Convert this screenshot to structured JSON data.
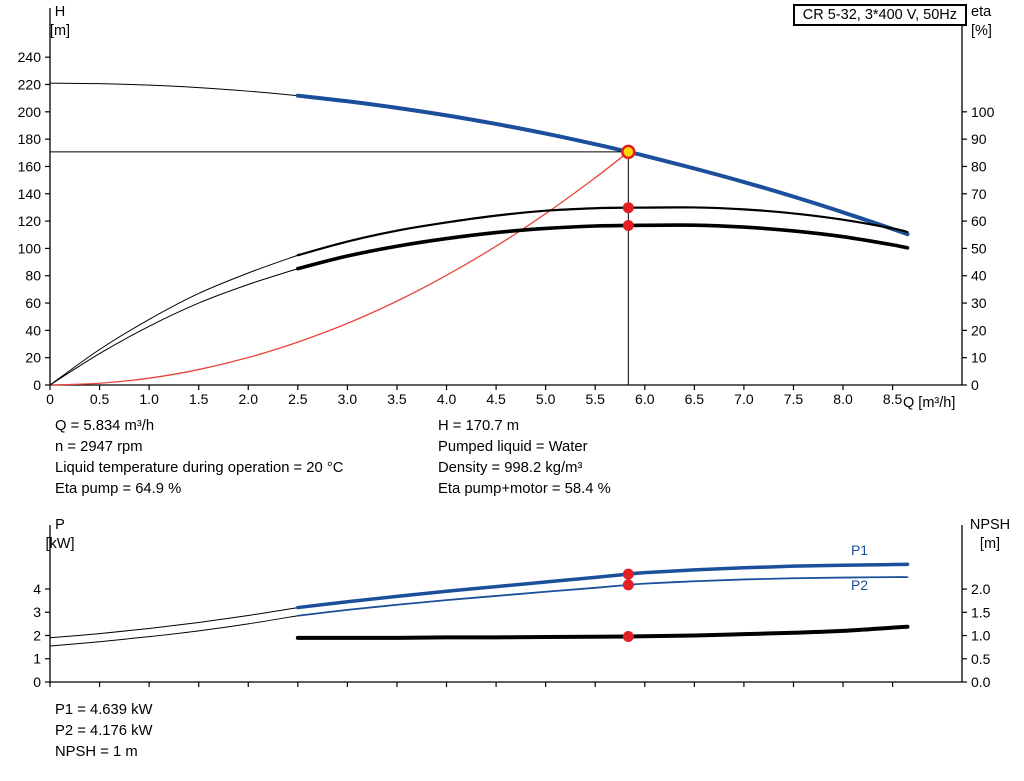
{
  "title_box": "CR 5-32, 3*400 V, 50Hz",
  "colors": {
    "curve_blue": "#1b4f9c",
    "marker_red": "#e31e24",
    "system_curve_red": "#e8453c",
    "duty_point_yellow": "#ffd800",
    "axis_black": "#000000"
  },
  "annotations": {
    "top_left": [
      "Q = 5.834 m³/h",
      "n = 2947 rpm",
      "Liquid temperature during operation = 20 °C",
      "Eta pump = 64.9 %"
    ],
    "top_right": [
      "H = 170.7 m",
      "Pumped liquid = Water",
      "Density = 998.2 kg/m³",
      "Eta pump+motor = 58.4 %"
    ],
    "bottom": [
      "P1 = 4.639 kW",
      "P2 = 4.176 kW",
      "NPSH = 1 m"
    ]
  },
  "chart_data": [
    {
      "id": "qh",
      "type": "line",
      "title": "CR 5-32, 3*400 V, 50Hz",
      "x_axis": {
        "min": 0,
        "max": 9.2,
        "label": "Q [m³/h]",
        "show_labels": true,
        "ticks": [
          {
            "v": 0,
            "t": "0"
          },
          {
            "v": 0.5,
            "t": "0.5"
          },
          {
            "v": 1,
            "t": "1.0"
          },
          {
            "v": 1.5,
            "t": "1.5"
          },
          {
            "v": 2,
            "t": "2.0"
          },
          {
            "v": 2.5,
            "t": "2.5"
          },
          {
            "v": 3,
            "t": "3.0"
          },
          {
            "v": 3.5,
            "t": "3.5"
          },
          {
            "v": 4,
            "t": "4.0"
          },
          {
            "v": 4.5,
            "t": "4.5"
          },
          {
            "v": 5,
            "t": "5.0"
          },
          {
            "v": 5.5,
            "t": "5.5"
          },
          {
            "v": 6,
            "t": "6.0"
          },
          {
            "v": 6.5,
            "t": "6.5"
          },
          {
            "v": 7,
            "t": "7.0"
          },
          {
            "v": 7.5,
            "t": "7.5"
          },
          {
            "v": 8,
            "t": "8.0"
          },
          {
            "v": 8.5,
            "t": "8.5"
          }
        ]
      },
      "left_axis": {
        "min": 0,
        "max": 276,
        "label_lines": [
          "H",
          "[m]"
        ],
        "ticks": [
          {
            "v": 0,
            "t": "0"
          },
          {
            "v": 20,
            "t": "20"
          },
          {
            "v": 40,
            "t": "40"
          },
          {
            "v": 60,
            "t": "60"
          },
          {
            "v": 80,
            "t": "80"
          },
          {
            "v": 100,
            "t": "100"
          },
          {
            "v": 120,
            "t": "120"
          },
          {
            "v": 140,
            "t": "140"
          },
          {
            "v": 160,
            "t": "160"
          },
          {
            "v": 180,
            "t": "180"
          },
          {
            "v": 200,
            "t": "200"
          },
          {
            "v": 220,
            "t": "220"
          },
          {
            "v": 240,
            "t": "240"
          }
        ]
      },
      "right_axis": {
        "min": 0,
        "max": 138,
        "label_lines": [
          "eta",
          "[%]"
        ],
        "ticks": [
          {
            "v": 0,
            "t": "0"
          },
          {
            "v": 10,
            "t": "10"
          },
          {
            "v": 20,
            "t": "20"
          },
          {
            "v": 30,
            "t": "30"
          },
          {
            "v": 40,
            "t": "40"
          },
          {
            "v": 50,
            "t": "50"
          },
          {
            "v": 60,
            "t": "60"
          },
          {
            "v": 70,
            "t": "70"
          },
          {
            "v": 80,
            "t": "80"
          },
          {
            "v": 90,
            "t": "90"
          },
          {
            "v": 100,
            "t": "100"
          }
        ]
      },
      "series": [
        {
          "name": "head-curve-low-flow",
          "axis": "left",
          "color": "#000000",
          "width": 1,
          "points": [
            [
              0,
              221
            ],
            [
              0.5,
              220.6
            ],
            [
              1,
              219.5
            ],
            [
              1.5,
              217.7
            ],
            [
              2,
              215.1
            ],
            [
              2.5,
              211.8
            ]
          ]
        },
        {
          "name": "head-curve",
          "axis": "left",
          "color": "#1b4f9c",
          "width": 4,
          "points": [
            [
              2.5,
              211.8
            ],
            [
              3,
              207.7
            ],
            [
              3.5,
              202.9
            ],
            [
              4,
              197.4
            ],
            [
              4.5,
              191.1
            ],
            [
              5,
              184.1
            ],
            [
              5.5,
              176.3
            ],
            [
              5.834,
              170.7
            ],
            [
              6,
              167.8
            ],
            [
              6.5,
              158.5
            ],
            [
              7,
              148.6
            ],
            [
              7.5,
              137.9
            ],
            [
              8,
              126.4
            ],
            [
              8.5,
              114.2
            ],
            [
              8.65,
              110.4
            ]
          ]
        },
        {
          "name": "system-curve",
          "axis": "left",
          "color": "#e8453c",
          "width": 1.3,
          "points": [
            [
              0,
              0
            ],
            [
              0.5,
              1.3
            ],
            [
              1,
              5
            ],
            [
              1.5,
              11.3
            ],
            [
              2,
              20.1
            ],
            [
              2.5,
              31.4
            ],
            [
              3,
              45.1
            ],
            [
              3.5,
              61.4
            ],
            [
              4,
              80.3
            ],
            [
              4.5,
              101.6
            ],
            [
              5,
              125.4
            ],
            [
              5.5,
              151.7
            ],
            [
              5.834,
              170.7
            ]
          ]
        },
        {
          "name": "eta-pump-low-flow",
          "axis": "right",
          "color": "#000000",
          "width": 1,
          "points": [
            [
              0,
              0
            ],
            [
              0.5,
              13
            ],
            [
              1,
              24
            ],
            [
              1.5,
              33.5
            ],
            [
              2,
              41
            ],
            [
              2.5,
              47.5
            ]
          ]
        },
        {
          "name": "eta-pump-curve",
          "axis": "right",
          "color": "#000000",
          "width": 2.2,
          "points": [
            [
              2.5,
              47.5
            ],
            [
              3,
              52.5
            ],
            [
              3.5,
              56.5
            ],
            [
              4,
              59.5
            ],
            [
              4.5,
              62
            ],
            [
              5,
              63.8
            ],
            [
              5.5,
              64.7
            ],
            [
              5.834,
              64.9
            ],
            [
              6.5,
              65
            ],
            [
              7,
              64.3
            ],
            [
              7.5,
              62.8
            ],
            [
              8,
              60.5
            ],
            [
              8.5,
              57.3
            ],
            [
              8.65,
              56
            ]
          ]
        },
        {
          "name": "eta-pump-motor-low-flow",
          "axis": "right",
          "color": "#000000",
          "width": 1,
          "points": [
            [
              0,
              0
            ],
            [
              0.5,
              11.5
            ],
            [
              1,
              21.5
            ],
            [
              1.5,
              30
            ],
            [
              2,
              36.8
            ],
            [
              2.5,
              42.6
            ]
          ]
        },
        {
          "name": "eta-pump-motor-curve",
          "axis": "right",
          "color": "#000000",
          "width": 3.6,
          "points": [
            [
              2.5,
              42.6
            ],
            [
              3,
              47.2
            ],
            [
              3.5,
              50.8
            ],
            [
              4,
              53.6
            ],
            [
              4.5,
              55.8
            ],
            [
              5,
              57.3
            ],
            [
              5.5,
              58.2
            ],
            [
              5.834,
              58.4
            ],
            [
              6.5,
              58.5
            ],
            [
              7,
              57.8
            ],
            [
              7.5,
              56.4
            ],
            [
              8,
              54.3
            ],
            [
              8.5,
              51.3
            ],
            [
              8.65,
              50.2
            ]
          ]
        }
      ],
      "markers": [
        {
          "name": "duty-flow-line",
          "type": "vline",
          "axis": "left",
          "x": 5.834,
          "y1": 0,
          "y2": 170.7,
          "color": "#000000",
          "width": 1
        },
        {
          "name": "duty-head-line",
          "type": "hline",
          "axis": "left",
          "y": 170.7,
          "x1": 0,
          "x2": 5.834,
          "color": "#000000",
          "width": 1
        },
        {
          "name": "eta-pump-point",
          "type": "dot",
          "axis": "right",
          "x": 5.834,
          "y": 64.9,
          "r": 5.5,
          "fill": "#e31e24"
        },
        {
          "name": "eta-pump-motor-point",
          "type": "dot",
          "axis": "right",
          "x": 5.834,
          "y": 58.4,
          "r": 5.5,
          "fill": "#e31e24"
        },
        {
          "name": "duty-point",
          "type": "dot",
          "axis": "left",
          "x": 5.834,
          "y": 170.7,
          "r": 6,
          "fill": "#ffd800",
          "stroke": "#e31e24",
          "stroke_width": 2.5,
          "interactable": true
        }
      ],
      "duty_point": {
        "q_m3h": 5.834,
        "h_m": 170.7,
        "eta_pump_pct": 64.9,
        "eta_pump_motor_pct": 58.4
      }
    },
    {
      "id": "power",
      "type": "line",
      "x_axis": {
        "min": 0,
        "max": 9.2,
        "label": "",
        "show_labels": false,
        "ticks": [
          {
            "v": 0,
            "t": "0"
          },
          {
            "v": 0.5,
            "t": ""
          },
          {
            "v": 1,
            "t": ""
          },
          {
            "v": 1.5,
            "t": ""
          },
          {
            "v": 2,
            "t": ""
          },
          {
            "v": 2.5,
            "t": ""
          },
          {
            "v": 3,
            "t": ""
          },
          {
            "v": 3.5,
            "t": ""
          },
          {
            "v": 4,
            "t": ""
          },
          {
            "v": 4.5,
            "t": ""
          },
          {
            "v": 5,
            "t": ""
          },
          {
            "v": 5.5,
            "t": ""
          },
          {
            "v": 6,
            "t": ""
          },
          {
            "v": 6.5,
            "t": ""
          },
          {
            "v": 7,
            "t": ""
          },
          {
            "v": 7.5,
            "t": ""
          },
          {
            "v": 8,
            "t": ""
          },
          {
            "v": 8.5,
            "t": ""
          }
        ]
      },
      "left_axis": {
        "min": 0,
        "max": 6.75,
        "label_lines": [
          "P",
          "[kW]"
        ],
        "ticks": [
          {
            "v": 0,
            "t": "0"
          },
          {
            "v": 1,
            "t": "1"
          },
          {
            "v": 2,
            "t": "2"
          },
          {
            "v": 3,
            "t": "3"
          },
          {
            "v": 4,
            "t": "4"
          }
        ]
      },
      "right_axis": {
        "min": 0,
        "max": 3.38,
        "label_lines": [
          "NPSH",
          "[m]"
        ],
        "ticks": [
          {
            "v": 0,
            "t": "0.0"
          },
          {
            "v": 0.5,
            "t": "0.5"
          },
          {
            "v": 1,
            "t": "1.0"
          },
          {
            "v": 1.5,
            "t": "1.5"
          },
          {
            "v": 2,
            "t": "2.0"
          }
        ]
      },
      "series": [
        {
          "name": "p1-low-flow",
          "axis": "left",
          "color": "#000000",
          "width": 1,
          "points": [
            [
              0,
              1.9
            ],
            [
              0.5,
              2.08
            ],
            [
              1,
              2.3
            ],
            [
              1.5,
              2.56
            ],
            [
              2,
              2.86
            ],
            [
              2.5,
              3.2
            ]
          ]
        },
        {
          "name": "p1-curve",
          "axis": "left",
          "color": "#1b4f9c",
          "width": 3.5,
          "points": [
            [
              2.5,
              3.2
            ],
            [
              3,
              3.45
            ],
            [
              3.5,
              3.68
            ],
            [
              4,
              3.9
            ],
            [
              4.5,
              4.1
            ],
            [
              5,
              4.3
            ],
            [
              5.5,
              4.5
            ],
            [
              5.834,
              4.639
            ],
            [
              6,
              4.7
            ],
            [
              6.5,
              4.82
            ],
            [
              7,
              4.91
            ],
            [
              7.5,
              4.98
            ],
            [
              8,
              5.02
            ],
            [
              8.5,
              5.05
            ],
            [
              8.65,
              5.06
            ]
          ]
        },
        {
          "name": "p2-low-flow",
          "axis": "left",
          "color": "#000000",
          "width": 1,
          "points": [
            [
              0,
              1.55
            ],
            [
              0.5,
              1.73
            ],
            [
              1,
              1.95
            ],
            [
              1.5,
              2.2
            ],
            [
              2,
              2.5
            ],
            [
              2.5,
              2.85
            ]
          ]
        },
        {
          "name": "p2-curve",
          "axis": "left",
          "color": "#1b4f9c",
          "width": 1.8,
          "points": [
            [
              2.5,
              2.85
            ],
            [
              3,
              3.1
            ],
            [
              3.5,
              3.32
            ],
            [
              4,
              3.52
            ],
            [
              4.5,
              3.7
            ],
            [
              5,
              3.88
            ],
            [
              5.5,
              4.05
            ],
            [
              5.834,
              4.176
            ],
            [
              6,
              4.23
            ],
            [
              6.5,
              4.33
            ],
            [
              7,
              4.41
            ],
            [
              7.5,
              4.46
            ],
            [
              8,
              4.49
            ],
            [
              8.5,
              4.51
            ],
            [
              8.65,
              4.51
            ]
          ]
        },
        {
          "name": "npsh-curve",
          "axis": "right",
          "color": "#000000",
          "width": 4,
          "points": [
            [
              2.5,
              0.95
            ],
            [
              3,
              0.95
            ],
            [
              3.5,
              0.95
            ],
            [
              4,
              0.96
            ],
            [
              4.5,
              0.96
            ],
            [
              5,
              0.97
            ],
            [
              5.834,
              0.98
            ],
            [
              6.5,
              1.0
            ],
            [
              7,
              1.03
            ],
            [
              7.5,
              1.06
            ],
            [
              8,
              1.1
            ],
            [
              8.5,
              1.17
            ],
            [
              8.65,
              1.19
            ]
          ]
        }
      ],
      "markers": [
        {
          "name": "p1-point",
          "type": "dot",
          "axis": "left",
          "x": 5.834,
          "y": 4.639,
          "r": 5.5,
          "fill": "#e31e24"
        },
        {
          "name": "p2-point",
          "type": "dot",
          "axis": "left",
          "x": 5.834,
          "y": 4.176,
          "r": 5.5,
          "fill": "#e31e24"
        },
        {
          "name": "npsh-point",
          "type": "dot",
          "axis": "right",
          "x": 5.834,
          "y": 0.98,
          "r": 5.5,
          "fill": "#e31e24"
        }
      ],
      "series_labels": [
        {
          "text": "P1",
          "x": 8.08,
          "v": 5.45,
          "axis": "left",
          "color": "#1b4f9c"
        },
        {
          "text": "P2",
          "x": 8.08,
          "v": 3.95,
          "axis": "left",
          "color": "#1b4f9c"
        }
      ],
      "duty_point": {
        "p1_kw": 4.639,
        "p2_kw": 4.176,
        "npsh_m": 1
      }
    }
  ]
}
